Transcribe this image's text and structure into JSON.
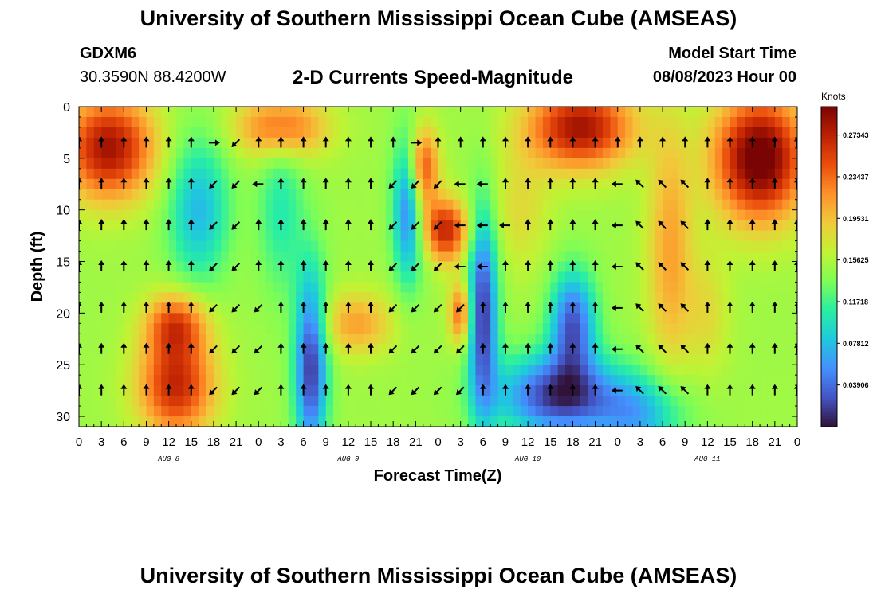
{
  "header": {
    "title": "University of Southern Mississippi Ocean Cube (AMSEAS)",
    "station_id": "GDXM6",
    "coordinates": "30.3590N  88.4200W",
    "subtitle": "2-D Currents Speed-Magnitude",
    "model_start_label": "Model Start Time",
    "model_start_value": "08/08/2023 Hour 00"
  },
  "footer": {
    "title": "University of Southern Mississippi Ocean Cube (AMSEAS)"
  },
  "chart_data": {
    "type": "heatmap",
    "xlabel": "Forecast Time(Z)",
    "ylabel": "Depth (ft)",
    "x_tick_labels": [
      "0",
      "3",
      "6",
      "9",
      "12",
      "15",
      "18",
      "21",
      "0",
      "3",
      "6",
      "9",
      "12",
      "15",
      "18",
      "21",
      "0",
      "3",
      "6",
      "9",
      "12",
      "15",
      "18",
      "21",
      "0",
      "3",
      "6",
      "9",
      "12",
      "15",
      "18",
      "21",
      "0"
    ],
    "date_labels": [
      {
        "label": "AUG 8",
        "at_tick": 4
      },
      {
        "label": "AUG 9",
        "at_tick": 12
      },
      {
        "label": "AUG 10",
        "at_tick": 20
      },
      {
        "label": "AUG 11",
        "at_tick": 28
      }
    ],
    "y_ticks": [
      0,
      5,
      10,
      15,
      20,
      25,
      30
    ],
    "ylim": [
      0,
      31
    ],
    "xlim": [
      0,
      96
    ],
    "colorbar": {
      "title": "Knots",
      "tick_labels": [
        "0.27343",
        "0.23437",
        "0.19531",
        "0.15625",
        "0.11718",
        "0.07812",
        "0.03906"
      ],
      "tick_values": [
        0.27343,
        0.23437,
        0.19531,
        0.15625,
        0.11718,
        0.07812,
        0.03906
      ],
      "range": [
        0,
        0.3
      ],
      "colors": [
        "#30123b",
        "#4454c4",
        "#4490fe",
        "#1fc8de",
        "#29efa2",
        "#7dfe56",
        "#c1f334",
        "#f1ca3a",
        "#fe922a",
        "#ea4f0d",
        "#be2102",
        "#7a0403"
      ]
    },
    "arrow_depths": [
      3.5,
      7.5,
      11.5,
      15.5,
      19.5,
      23.5,
      27.5
    ],
    "arrow_times": [
      0,
      3,
      6,
      9,
      12,
      15,
      18,
      21,
      24,
      27,
      30,
      33,
      36,
      39,
      42,
      45,
      48,
      51,
      54,
      57,
      60,
      63,
      66,
      69,
      72,
      75,
      78,
      81,
      84,
      87,
      90,
      93,
      96
    ],
    "arrow_directions_deg": [
      [
        0,
        0,
        0,
        0,
        0,
        0,
        90,
        225,
        0,
        0,
        0,
        0,
        0,
        0,
        0,
        90,
        0,
        0,
        0,
        0,
        0,
        0,
        0,
        0,
        0,
        0,
        0,
        0,
        0,
        0,
        0,
        0,
        0
      ],
      [
        0,
        0,
        0,
        0,
        0,
        0,
        225,
        225,
        270,
        0,
        0,
        0,
        0,
        0,
        225,
        225,
        225,
        270,
        270,
        0,
        0,
        0,
        0,
        0,
        270,
        315,
        315,
        315,
        0,
        0,
        0,
        0,
        0
      ],
      [
        0,
        0,
        0,
        0,
        0,
        0,
        225,
        225,
        0,
        0,
        0,
        0,
        0,
        0,
        225,
        225,
        225,
        270,
        270,
        270,
        0,
        0,
        0,
        0,
        270,
        315,
        315,
        315,
        0,
        0,
        0,
        0,
        0
      ],
      [
        0,
        0,
        0,
        0,
        0,
        0,
        225,
        225,
        0,
        0,
        0,
        0,
        0,
        0,
        225,
        225,
        225,
        270,
        270,
        0,
        0,
        0,
        0,
        0,
        270,
        315,
        315,
        315,
        0,
        0,
        0,
        0,
        0
      ],
      [
        0,
        0,
        0,
        0,
        0,
        0,
        225,
        225,
        225,
        0,
        0,
        0,
        0,
        0,
        225,
        225,
        225,
        225,
        0,
        0,
        0,
        0,
        0,
        0,
        270,
        315,
        315,
        315,
        0,
        0,
        0,
        0,
        0
      ],
      [
        0,
        0,
        0,
        0,
        0,
        0,
        225,
        225,
        225,
        0,
        0,
        0,
        0,
        0,
        225,
        225,
        225,
        225,
        0,
        0,
        0,
        0,
        0,
        0,
        270,
        315,
        315,
        315,
        0,
        0,
        0,
        0,
        0
      ],
      [
        0,
        0,
        0,
        0,
        0,
        0,
        225,
        225,
        225,
        0,
        0,
        0,
        0,
        0,
        225,
        225,
        225,
        225,
        0,
        0,
        0,
        0,
        0,
        0,
        270,
        315,
        315,
        315,
        0,
        0,
        0,
        0,
        0
      ]
    ]
  }
}
